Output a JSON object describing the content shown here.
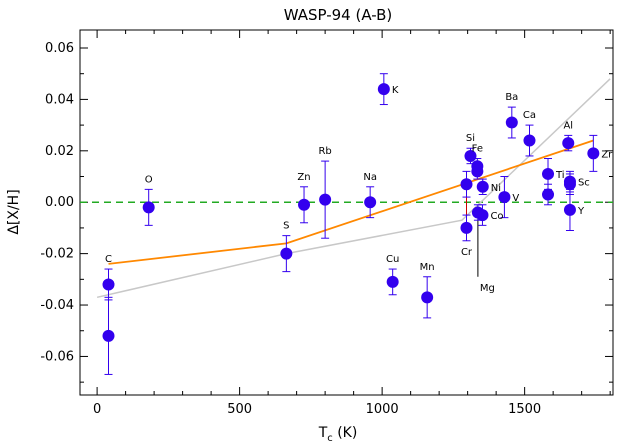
{
  "chart_data": {
    "type": "scatter",
    "title": "WASP-94 (A-B)",
    "xlabel": "T",
    "xlabel_sub": "c",
    "xlabel_unit": " (K)",
    "ylabel": "Δ[X/H]",
    "xlim": [
      -60,
      1810
    ],
    "ylim": [
      -0.075,
      0.067
    ],
    "x_ticks": [
      0,
      500,
      1000,
      1500
    ],
    "y_ticks": [
      -0.06,
      -0.04,
      -0.02,
      0.0,
      0.02,
      0.04,
      0.06
    ],
    "y_tick_labels": [
      "-0.06",
      "-0.04",
      "-0.02",
      "0.00",
      "0.02",
      "0.04",
      "0.06"
    ],
    "reference_line": {
      "y": 0.0,
      "color": "#22aa22",
      "style": "dashed"
    },
    "colors": {
      "points": "#3300ee",
      "errorbars": "#3300ee",
      "connector": "#cc0000",
      "orange_fit": "#ff8800",
      "gray_fit": "#c8c8c8"
    },
    "points": [
      {
        "label": "C",
        "x": 40,
        "y": -0.032,
        "err": 0.006,
        "label_pos": "above"
      },
      {
        "label": "",
        "x": 40,
        "y": -0.052,
        "err": 0.015,
        "label_pos": "none"
      },
      {
        "label": "O",
        "x": 181,
        "y": -0.002,
        "err": 0.007,
        "label_pos": "above"
      },
      {
        "label": "S",
        "x": 664,
        "y": -0.02,
        "err": 0.007,
        "label_pos": "above"
      },
      {
        "label": "Zn",
        "x": 726,
        "y": -0.001,
        "err": 0.007,
        "label_pos": "above"
      },
      {
        "label": "Rb",
        "x": 800,
        "y": 0.001,
        "err": 0.015,
        "label_pos": "above"
      },
      {
        "label": "Na",
        "x": 958,
        "y": 0.0,
        "err": 0.006,
        "label_pos": "above"
      },
      {
        "label": "K",
        "x": 1006,
        "y": 0.044,
        "err": 0.006,
        "label_pos": "right"
      },
      {
        "label": "Cu",
        "x": 1037,
        "y": -0.031,
        "err": 0.005,
        "label_pos": "above"
      },
      {
        "label": "Mn",
        "x": 1158,
        "y": -0.037,
        "err": 0.008,
        "label_pos": "above"
      },
      {
        "label": "",
        "x": 1296,
        "y": 0.007,
        "err": 0.005,
        "label_pos": "none"
      },
      {
        "label": "Cr",
        "x": 1296,
        "y": -0.01,
        "err": 0.005,
        "label_pos": "below"
      },
      {
        "label": "Si",
        "x": 1310,
        "y": 0.018,
        "err": 0.003,
        "label_pos": "above"
      },
      {
        "label": "Fe",
        "x": 1334,
        "y": 0.014,
        "err": 0.003,
        "label_pos": "above"
      },
      {
        "label": "",
        "x": 1334,
        "y": 0.012,
        "err": 0.003,
        "label_pos": "none"
      },
      {
        "label": "Ni",
        "x": 1353,
        "y": 0.006,
        "err": 0.003,
        "label_pos": "right"
      },
      {
        "label": "Co",
        "x": 1352,
        "y": -0.005,
        "err": 0.004,
        "label_pos": "right"
      },
      {
        "label": "Mg",
        "x": 1336,
        "y": -0.004,
        "err": 0.003,
        "label_pos": "none"
      },
      {
        "label": "V",
        "x": 1429,
        "y": 0.002,
        "err": 0.008,
        "label_pos": "right"
      },
      {
        "label": "Ba",
        "x": 1455,
        "y": 0.031,
        "err": 0.006,
        "label_pos": "above"
      },
      {
        "label": "Ca",
        "x": 1517,
        "y": 0.024,
        "err": 0.006,
        "label_pos": "above"
      },
      {
        "label": "Ti",
        "x": 1582,
        "y": 0.011,
        "err": 0.006,
        "label_pos": "right"
      },
      {
        "label": "",
        "x": 1582,
        "y": 0.003,
        "err": 0.004,
        "label_pos": "none"
      },
      {
        "label": "Al",
        "x": 1653,
        "y": 0.023,
        "err": 0.003,
        "label_pos": "above"
      },
      {
        "label": "Sc",
        "x": 1659,
        "y": 0.008,
        "err": 0.004,
        "label_pos": "right"
      },
      {
        "label": "",
        "x": 1659,
        "y": 0.007,
        "err": 0.004,
        "label_pos": "none"
      },
      {
        "label": "Y",
        "x": 1659,
        "y": -0.003,
        "err": 0.008,
        "label_pos": "right"
      },
      {
        "label": "Zr",
        "x": 1741,
        "y": 0.019,
        "err": 0.007,
        "label_pos": "right"
      }
    ],
    "connectors": [
      {
        "x": 40,
        "y1": -0.032,
        "y2": -0.052
      },
      {
        "x": 1296,
        "y1": 0.007,
        "y2": -0.01
      },
      {
        "x": 1582,
        "y1": 0.011,
        "y2": 0.003
      }
    ],
    "mg_line": {
      "x": 1336,
      "y_from": -0.004,
      "y_to": -0.029
    },
    "orange_fit": [
      [
        40,
        -0.024
      ],
      [
        664,
        -0.016
      ],
      [
        1741,
        0.024
      ]
    ],
    "gray_fit": [
      [
        0,
        -0.037
      ],
      [
        664,
        -0.02
      ],
      [
        1280,
        -0.007
      ],
      [
        1800,
        0.048
      ]
    ]
  }
}
